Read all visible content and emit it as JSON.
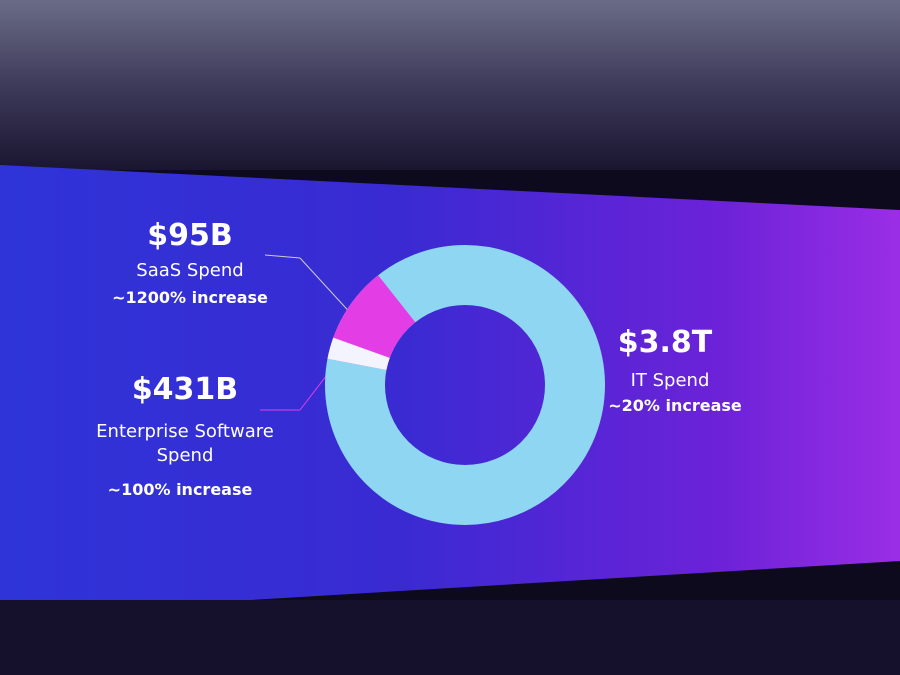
{
  "chart_data": {
    "type": "donut",
    "labels": [
      "IT Spend",
      "Enterprise Software Spend",
      "SaaS Spend"
    ],
    "values": [
      3800000000000,
      431000000000,
      95000000000
    ],
    "value_labels": [
      "$3.8T",
      "$431B",
      "$95B"
    ],
    "annotations": [
      "~20% increase",
      "~100% increase",
      "~1200% increase"
    ],
    "colors": [
      "#8fd6f2",
      "#e33ee6",
      "#f4f4ff"
    ]
  }
}
